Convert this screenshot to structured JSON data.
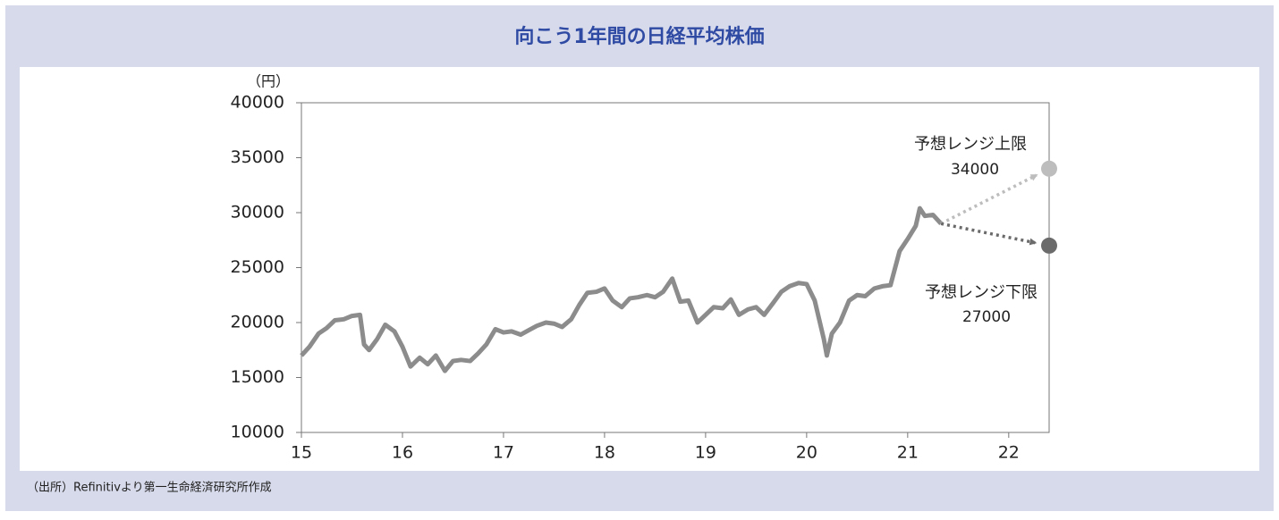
{
  "chart_data": {
    "type": "line",
    "title": "向こう1年間の日経平均株価",
    "y_unit": "（円）",
    "source": "（出所）Refinitivより第一生命経済研究所作成",
    "xlim": [
      15,
      22.4
    ],
    "xticks": [
      15,
      16,
      17,
      18,
      19,
      20,
      21,
      22
    ],
    "ylim": [
      10000,
      40000
    ],
    "yticks": [
      10000,
      15000,
      20000,
      25000,
      30000,
      35000,
      40000
    ],
    "grid": false,
    "series": [
      {
        "color": "#8c8c8c",
        "style": "solid",
        "x": [
          15,
          15.08,
          15.17,
          15.25,
          15.33,
          15.42,
          15.5,
          15.58,
          15.62,
          15.67,
          15.75,
          15.83,
          15.92,
          16,
          16.08,
          16.17,
          16.25,
          16.33,
          16.42,
          16.5,
          16.58,
          16.67,
          16.75,
          16.83,
          16.92,
          17,
          17.08,
          17.17,
          17.25,
          17.33,
          17.42,
          17.5,
          17.58,
          17.67,
          17.75,
          17.83,
          17.92,
          18,
          18.08,
          18.17,
          18.25,
          18.33,
          18.42,
          18.5,
          18.58,
          18.67,
          18.75,
          18.83,
          18.92,
          19,
          19.08,
          19.17,
          19.25,
          19.33,
          19.42,
          19.5,
          19.58,
          19.67,
          19.75,
          19.83,
          19.92,
          20,
          20.08,
          20.17,
          20.2,
          20.25,
          20.33,
          20.42,
          20.5,
          20.58,
          20.67,
          20.75,
          20.83,
          20.92,
          21,
          21.08,
          21.12,
          21.17,
          21.25,
          21.33
        ],
        "values": [
          17000,
          17800,
          19000,
          19500,
          20200,
          20300,
          20600,
          20700,
          18000,
          17500,
          18500,
          19800,
          19200,
          17800,
          16000,
          16800,
          16200,
          17000,
          15600,
          16500,
          16600,
          16500,
          17200,
          18000,
          19400,
          19100,
          19200,
          18900,
          19300,
          19700,
          20000,
          19900,
          19600,
          20300,
          21600,
          22700,
          22800,
          23100,
          22000,
          21400,
          22200,
          22300,
          22500,
          22300,
          22800,
          24000,
          21900,
          22000,
          20000,
          20700,
          21400,
          21300,
          22100,
          20700,
          21200,
          21400,
          20700,
          21800,
          22800,
          23300,
          23600,
          23500,
          22000,
          18500,
          17000,
          19000,
          20000,
          22000,
          22500,
          22400,
          23100,
          23300,
          23400,
          26500,
          27600,
          28800,
          30400,
          29700,
          29800,
          29000
        ]
      },
      {
        "name": "予想レンジ上限",
        "color": "#bdbdbd",
        "style": "dotted",
        "x": [
          21.33,
          22.4
        ],
        "values": [
          29000,
          34000
        ]
      },
      {
        "name": "予想レンジ下限",
        "color": "#6b6b6b",
        "style": "dotted",
        "x": [
          21.33,
          22.4
        ],
        "values": [
          29000,
          27000
        ]
      }
    ]
  }
}
